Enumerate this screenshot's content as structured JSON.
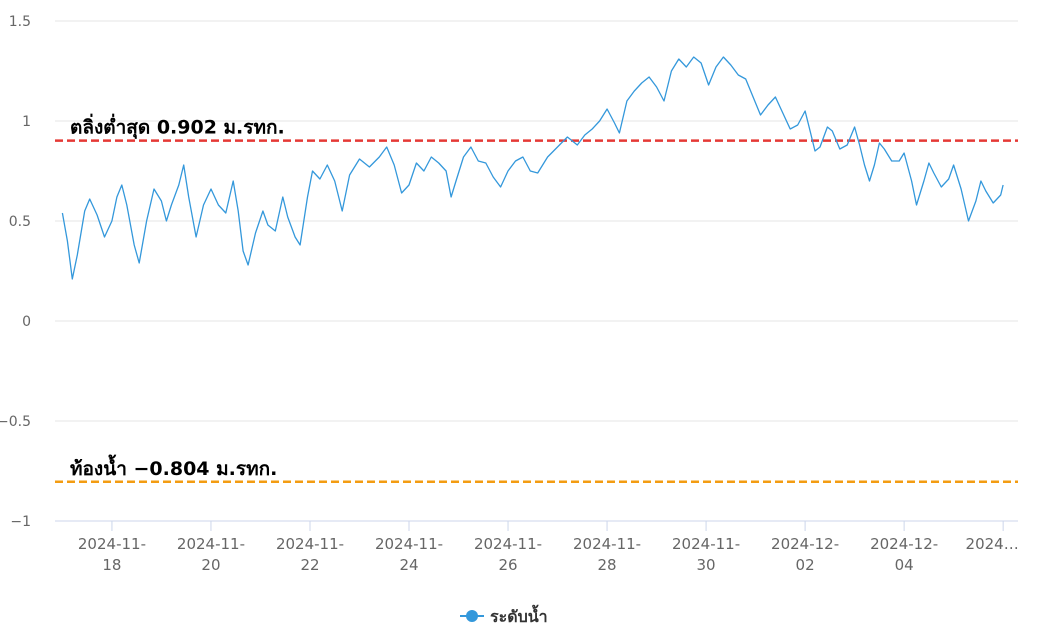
{
  "chart_data": {
    "type": "line",
    "ylim": [
      -1,
      1.5
    ],
    "y_ticks": [
      {
        "value": 1.5,
        "label": "1.5"
      },
      {
        "value": 1,
        "label": "1"
      },
      {
        "value": 0.5,
        "label": "0.5"
      },
      {
        "value": 0,
        "label": "0"
      },
      {
        "value": -0.5,
        "label": "−0.5"
      },
      {
        "value": -1,
        "label": "−1"
      }
    ],
    "x_ticks": [
      {
        "day": 18,
        "line1": "2024-11-",
        "line2": "18"
      },
      {
        "day": 20,
        "line1": "2024-11-",
        "line2": "20"
      },
      {
        "day": 22,
        "line1": "2024-11-",
        "line2": "22"
      },
      {
        "day": 24,
        "line1": "2024-11-",
        "line2": "24"
      },
      {
        "day": 26,
        "line1": "2024-11-",
        "line2": "26"
      },
      {
        "day": 28,
        "line1": "2024-11-",
        "line2": "28"
      },
      {
        "day": 30,
        "line1": "2024-11-",
        "line2": "30"
      },
      {
        "day": 32,
        "line1": "2024-12-",
        "line2": "02"
      },
      {
        "day": 34,
        "line1": "2024-12-",
        "line2": "04"
      },
      {
        "day": 36,
        "line1": "2024…",
        "line2": ""
      }
    ],
    "x_range_days": [
      16.85,
      36.3
    ],
    "grid": true,
    "series": [
      {
        "name": "ระดับน้ำ",
        "color": "#3498db",
        "points": [
          [
            17.0,
            0.54
          ],
          [
            17.1,
            0.4
          ],
          [
            17.2,
            0.21
          ],
          [
            17.3,
            0.33
          ],
          [
            17.45,
            0.55
          ],
          [
            17.55,
            0.61
          ],
          [
            17.7,
            0.53
          ],
          [
            17.85,
            0.42
          ],
          [
            18.0,
            0.5
          ],
          [
            18.1,
            0.62
          ],
          [
            18.2,
            0.68
          ],
          [
            18.3,
            0.58
          ],
          [
            18.45,
            0.38
          ],
          [
            18.55,
            0.29
          ],
          [
            18.7,
            0.5
          ],
          [
            18.85,
            0.66
          ],
          [
            19.0,
            0.6
          ],
          [
            19.1,
            0.5
          ],
          [
            19.2,
            0.58
          ],
          [
            19.35,
            0.68
          ],
          [
            19.45,
            0.78
          ],
          [
            19.55,
            0.62
          ],
          [
            19.7,
            0.42
          ],
          [
            19.85,
            0.58
          ],
          [
            20.0,
            0.66
          ],
          [
            20.15,
            0.58
          ],
          [
            20.3,
            0.54
          ],
          [
            20.45,
            0.7
          ],
          [
            20.55,
            0.55
          ],
          [
            20.65,
            0.35
          ],
          [
            20.75,
            0.28
          ],
          [
            20.9,
            0.44
          ],
          [
            21.05,
            0.55
          ],
          [
            21.15,
            0.48
          ],
          [
            21.3,
            0.45
          ],
          [
            21.45,
            0.62
          ],
          [
            21.55,
            0.52
          ],
          [
            21.7,
            0.42
          ],
          [
            21.8,
            0.38
          ],
          [
            21.95,
            0.62
          ],
          [
            22.05,
            0.75
          ],
          [
            22.2,
            0.71
          ],
          [
            22.35,
            0.78
          ],
          [
            22.5,
            0.7
          ],
          [
            22.65,
            0.55
          ],
          [
            22.8,
            0.73
          ],
          [
            23.0,
            0.81
          ],
          [
            23.2,
            0.77
          ],
          [
            23.4,
            0.82
          ],
          [
            23.55,
            0.87
          ],
          [
            23.7,
            0.78
          ],
          [
            23.85,
            0.64
          ],
          [
            24.0,
            0.68
          ],
          [
            24.15,
            0.79
          ],
          [
            24.3,
            0.75
          ],
          [
            24.45,
            0.82
          ],
          [
            24.6,
            0.79
          ],
          [
            24.75,
            0.75
          ],
          [
            24.85,
            0.62
          ],
          [
            24.95,
            0.7
          ],
          [
            25.1,
            0.82
          ],
          [
            25.25,
            0.87
          ],
          [
            25.4,
            0.8
          ],
          [
            25.55,
            0.79
          ],
          [
            25.7,
            0.72
          ],
          [
            25.85,
            0.67
          ],
          [
            26.0,
            0.75
          ],
          [
            26.15,
            0.8
          ],
          [
            26.3,
            0.82
          ],
          [
            26.45,
            0.75
          ],
          [
            26.6,
            0.74
          ],
          [
            26.8,
            0.82
          ],
          [
            27.0,
            0.87
          ],
          [
            27.2,
            0.92
          ],
          [
            27.4,
            0.88
          ],
          [
            27.55,
            0.93
          ],
          [
            27.7,
            0.96
          ],
          [
            27.85,
            1.0
          ],
          [
            28.0,
            1.06
          ],
          [
            28.15,
            0.99
          ],
          [
            28.25,
            0.94
          ],
          [
            28.4,
            1.1
          ],
          [
            28.55,
            1.15
          ],
          [
            28.7,
            1.19
          ],
          [
            28.85,
            1.22
          ],
          [
            29.0,
            1.17
          ],
          [
            29.15,
            1.1
          ],
          [
            29.3,
            1.25
          ],
          [
            29.45,
            1.31
          ],
          [
            29.6,
            1.27
          ],
          [
            29.75,
            1.32
          ],
          [
            29.9,
            1.29
          ],
          [
            30.05,
            1.18
          ],
          [
            30.2,
            1.27
          ],
          [
            30.35,
            1.32
          ],
          [
            30.5,
            1.28
          ],
          [
            30.65,
            1.23
          ],
          [
            30.8,
            1.21
          ],
          [
            30.95,
            1.12
          ],
          [
            31.1,
            1.03
          ],
          [
            31.25,
            1.08
          ],
          [
            31.4,
            1.12
          ],
          [
            31.55,
            1.04
          ],
          [
            31.7,
            0.96
          ],
          [
            31.85,
            0.98
          ],
          [
            32.0,
            1.05
          ],
          [
            32.1,
            0.95
          ],
          [
            32.2,
            0.85
          ],
          [
            32.3,
            0.87
          ],
          [
            32.45,
            0.97
          ],
          [
            32.55,
            0.95
          ],
          [
            32.7,
            0.86
          ],
          [
            32.85,
            0.88
          ],
          [
            33.0,
            0.97
          ],
          [
            33.1,
            0.88
          ],
          [
            33.2,
            0.78
          ],
          [
            33.3,
            0.7
          ],
          [
            33.4,
            0.78
          ],
          [
            33.5,
            0.89
          ],
          [
            33.6,
            0.86
          ],
          [
            33.75,
            0.8
          ],
          [
            33.9,
            0.8
          ],
          [
            34.0,
            0.84
          ],
          [
            34.15,
            0.7
          ],
          [
            34.25,
            0.58
          ],
          [
            34.4,
            0.7
          ],
          [
            34.5,
            0.79
          ],
          [
            34.6,
            0.74
          ],
          [
            34.75,
            0.67
          ],
          [
            34.9,
            0.71
          ],
          [
            35.0,
            0.78
          ],
          [
            35.15,
            0.66
          ],
          [
            35.3,
            0.5
          ],
          [
            35.45,
            0.6
          ],
          [
            35.55,
            0.7
          ],
          [
            35.65,
            0.65
          ],
          [
            35.8,
            0.59
          ],
          [
            35.95,
            0.63
          ],
          [
            36.0,
            0.68
          ]
        ]
      }
    ],
    "reference_lines": [
      {
        "label": "ตลิ่งต่ำสุด 0.902 ม.รทก.",
        "value": 0.902,
        "color": "#e53935"
      },
      {
        "label": "ท้องน้ำ −0.804 ม.รทก.",
        "value": -0.804,
        "color": "#f39c12"
      }
    ],
    "legend_position": "bottom-center"
  }
}
